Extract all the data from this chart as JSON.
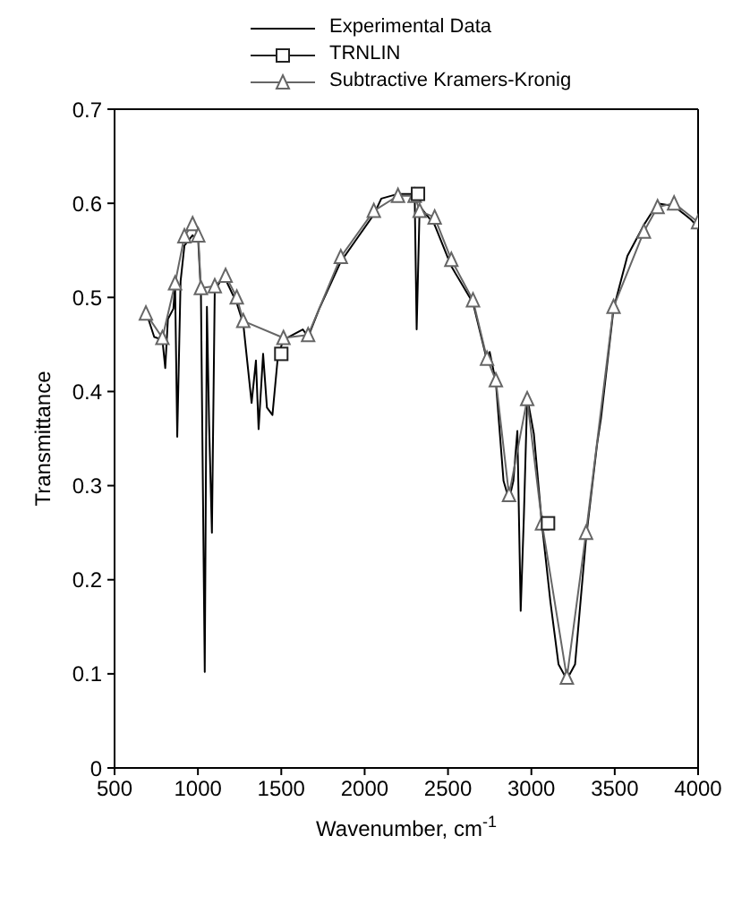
{
  "chart_data": {
    "type": "line",
    "xlabel": "Wavenumber, cm$^{-1}$",
    "ylabel": "Transmittance",
    "xlim": [
      500,
      4000
    ],
    "xticks": [
      500,
      1000,
      1500,
      2000,
      2500,
      3000,
      3500,
      4000
    ],
    "ylim": [
      0,
      0.7
    ],
    "yticks": [
      0,
      0.1,
      0.2,
      0.3,
      0.4,
      0.5,
      0.6,
      0.7
    ],
    "grid": false,
    "legend": "top",
    "line_style": "solid",
    "series": [
      {
        "name": "Experimental Data",
        "color": "#000000",
        "marker": "none",
        "x": [
          688,
          738,
          787,
          804,
          820,
          853,
          863,
          876,
          896,
          919,
          968,
          1002,
          1018,
          1041,
          1054,
          1067,
          1084,
          1101,
          1134,
          1166,
          1233,
          1272,
          1322,
          1348,
          1364,
          1391,
          1414,
          1447,
          1480,
          1513,
          1629,
          1661,
          1728,
          1857,
          1956,
          2055,
          2100,
          2200,
          2300,
          2312,
          2330,
          2420,
          2520,
          2650,
          2734,
          2750,
          2787,
          2833,
          2866,
          2892,
          2916,
          2936,
          2955,
          2975,
          3015,
          3064,
          3114,
          3163,
          3213,
          3262,
          3328,
          3394,
          3418,
          3493,
          3576,
          3675,
          3757,
          3856,
          3955,
          4000
        ],
        "values": [
          0.485,
          0.458,
          0.455,
          0.425,
          0.477,
          0.488,
          0.513,
          0.352,
          0.517,
          0.555,
          0.566,
          0.56,
          0.505,
          0.102,
          0.49,
          0.366,
          0.25,
          0.508,
          0.517,
          0.519,
          0.494,
          0.472,
          0.388,
          0.433,
          0.36,
          0.44,
          0.383,
          0.375,
          0.438,
          0.455,
          0.466,
          0.458,
          0.488,
          0.538,
          0.563,
          0.588,
          0.605,
          0.61,
          0.61,
          0.466,
          0.597,
          0.577,
          0.533,
          0.494,
          0.433,
          0.442,
          0.41,
          0.305,
          0.285,
          0.305,
          0.358,
          0.167,
          0.267,
          0.394,
          0.355,
          0.258,
          0.177,
          0.11,
          0.094,
          0.11,
          0.244,
          0.344,
          0.372,
          0.488,
          0.544,
          0.577,
          0.6,
          0.597,
          0.583,
          0.575
        ]
      },
      {
        "name": "TRNLIN",
        "type": "scatter",
        "color": "#222222",
        "marker": "square",
        "x": [
          1500,
          2320,
          3100
        ],
        "values": [
          0.44,
          0.61,
          0.26
        ]
      },
      {
        "name": "Subtractive Kramers-Kronig",
        "color": "#666666",
        "marker": "triangle",
        "x": [
          688,
          787,
          863,
          919,
          968,
          1002,
          1018,
          1101,
          1166,
          1233,
          1272,
          1513,
          1661,
          1857,
          2055,
          2200,
          2300,
          2330,
          2420,
          2520,
          2650,
          2734,
          2787,
          2866,
          2975,
          3064,
          3213,
          3328,
          3493,
          3675,
          3757,
          3856,
          4000
        ],
        "values": [
          0.483,
          0.457,
          0.515,
          0.565,
          0.578,
          0.566,
          0.51,
          0.512,
          0.523,
          0.5,
          0.475,
          0.457,
          0.46,
          0.543,
          0.592,
          0.608,
          0.608,
          0.592,
          0.585,
          0.54,
          0.497,
          0.435,
          0.412,
          0.29,
          0.392,
          0.26,
          0.096,
          0.25,
          0.49,
          0.57,
          0.596,
          0.6,
          0.58
        ]
      }
    ]
  }
}
